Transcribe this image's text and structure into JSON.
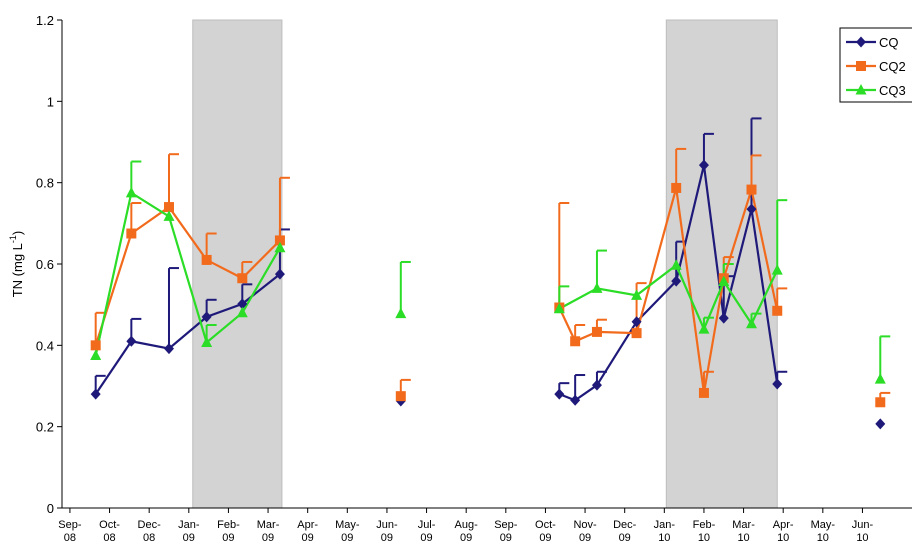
{
  "chart_data": {
    "type": "line",
    "title": "",
    "ylabel": "TN (mg L-1)",
    "ylabel_main": "TN (mg L",
    "ylabel_sup": "-1",
    "ylabel_close": ")",
    "xlabel": "",
    "ylim": [
      0,
      1.2
    ],
    "yticks": [
      "0",
      "0.2",
      "0.4",
      "0.6",
      "0.8",
      "1",
      "1.2"
    ],
    "xlim": [
      -0.2,
      21.2
    ],
    "xticks": [
      {
        "top": "Sep-",
        "bottom": "08"
      },
      {
        "top": "Oct-",
        "bottom": "08"
      },
      {
        "top": "Dec-",
        "bottom": "08"
      },
      {
        "top": "Jan-",
        "bottom": "09"
      },
      {
        "top": "Feb-",
        "bottom": "09"
      },
      {
        "top": "Mar-",
        "bottom": "09"
      },
      {
        "top": "Apr-",
        "bottom": "09"
      },
      {
        "top": "May-",
        "bottom": "09"
      },
      {
        "top": "Jun-",
        "bottom": "09"
      },
      {
        "top": "Jul-",
        "bottom": "09"
      },
      {
        "top": "Aug-",
        "bottom": "09"
      },
      {
        "top": "Sep-",
        "bottom": "09"
      },
      {
        "top": "Oct-",
        "bottom": "09"
      },
      {
        "top": "Nov-",
        "bottom": "09"
      },
      {
        "top": "Dec-",
        "bottom": "09"
      },
      {
        "top": "Jan-",
        "bottom": "10"
      },
      {
        "top": "Feb-",
        "bottom": "10"
      },
      {
        "top": "Mar-",
        "bottom": "10"
      },
      {
        "top": "Apr-",
        "bottom": "10"
      },
      {
        "top": "May-",
        "bottom": "10"
      },
      {
        "top": "Jun-",
        "bottom": "10"
      }
    ],
    "shaded_regions": [
      [
        3.1,
        5.35
      ],
      [
        15.05,
        17.85
      ]
    ],
    "legend_placement": "top-right",
    "grid": false,
    "series": [
      {
        "name": "CQ",
        "color": "#1f1a7a",
        "marker": "diamond",
        "segments": [
          [
            [
              0.65,
              0.28
            ],
            [
              1.55,
              0.41
            ],
            [
              2.5,
              0.392
            ],
            [
              3.45,
              0.47
            ],
            [
              4.35,
              0.502
            ],
            [
              5.3,
              0.575
            ]
          ],
          [
            [
              8.35,
              0.263
            ]
          ],
          [
            [
              12.35,
              0.28
            ],
            [
              12.75,
              0.265
            ],
            [
              13.3,
              0.302
            ],
            [
              14.3,
              0.458
            ],
            [
              15.3,
              0.558
            ],
            [
              16.0,
              0.843
            ],
            [
              16.5,
              0.467
            ],
            [
              17.2,
              0.735
            ],
            [
              17.85,
              0.305
            ]
          ],
          [
            [
              20.45,
              0.207
            ]
          ]
        ],
        "errors": [
          [
            0.65,
            0.28,
            0.325
          ],
          [
            1.55,
            0.41,
            0.465
          ],
          [
            2.5,
            0.392,
            0.59
          ],
          [
            3.45,
            0.47,
            0.512
          ],
          [
            4.35,
            0.502,
            0.55
          ],
          [
            5.3,
            0.575,
            0.685
          ],
          [
            12.35,
            0.28,
            0.307
          ],
          [
            12.75,
            0.265,
            0.327
          ],
          [
            13.3,
            0.302,
            0.335
          ],
          [
            15.3,
            0.558,
            0.655
          ],
          [
            16.0,
            0.843,
            0.92
          ],
          [
            16.5,
            0.467,
            0.57
          ],
          [
            17.2,
            0.735,
            0.958
          ],
          [
            17.85,
            0.305,
            0.335
          ]
        ]
      },
      {
        "name": "CQ2",
        "color": "#f26b1d",
        "marker": "square",
        "segments": [
          [
            [
              0.65,
              0.4
            ],
            [
              1.55,
              0.675
            ],
            [
              2.5,
              0.74
            ],
            [
              3.45,
              0.61
            ],
            [
              4.35,
              0.565
            ],
            [
              5.3,
              0.658
            ]
          ],
          [
            [
              8.35,
              0.275
            ]
          ],
          [
            [
              12.35,
              0.493
            ],
            [
              12.75,
              0.41
            ],
            [
              13.3,
              0.433
            ],
            [
              14.3,
              0.43
            ],
            [
              15.3,
              0.787
            ],
            [
              16.0,
              0.283
            ],
            [
              16.5,
              0.565
            ],
            [
              17.2,
              0.783
            ],
            [
              17.85,
              0.485
            ]
          ],
          [
            [
              20.45,
              0.26
            ]
          ]
        ],
        "errors": [
          [
            0.65,
            0.4,
            0.48
          ],
          [
            1.55,
            0.675,
            0.75
          ],
          [
            2.5,
            0.74,
            0.87
          ],
          [
            3.45,
            0.61,
            0.675
          ],
          [
            4.35,
            0.565,
            0.605
          ],
          [
            5.3,
            0.658,
            0.812
          ],
          [
            8.35,
            0.275,
            0.315
          ],
          [
            12.35,
            0.493,
            0.75
          ],
          [
            12.75,
            0.41,
            0.45
          ],
          [
            13.3,
            0.433,
            0.463
          ],
          [
            14.3,
            0.43,
            0.553
          ],
          [
            15.3,
            0.787,
            0.883
          ],
          [
            16.0,
            0.283,
            0.335
          ],
          [
            16.5,
            0.565,
            0.617
          ],
          [
            17.2,
            0.783,
            0.867
          ],
          [
            17.85,
            0.485,
            0.54
          ],
          [
            20.45,
            0.26,
            0.283
          ]
        ]
      },
      {
        "name": "CQ3",
        "color": "#2bdd26",
        "marker": "triangle",
        "segments": [
          [
            [
              0.65,
              0.375
            ],
            [
              1.55,
              0.775
            ],
            [
              2.5,
              0.717
            ],
            [
              3.45,
              0.407
            ],
            [
              4.35,
              0.48
            ],
            [
              5.3,
              0.64
            ]
          ],
          [
            [
              8.35,
              0.478
            ]
          ],
          [
            [
              12.35,
              0.49
            ],
            [
              13.3,
              0.54
            ],
            [
              14.3,
              0.523
            ],
            [
              15.3,
              0.597
            ],
            [
              16.0,
              0.44
            ],
            [
              16.5,
              0.557
            ],
            [
              17.2,
              0.453
            ],
            [
              17.85,
              0.585
            ]
          ],
          [
            [
              20.45,
              0.317
            ]
          ]
        ],
        "errors": [
          [
            1.55,
            0.775,
            0.852
          ],
          [
            3.45,
            0.407,
            0.45
          ],
          [
            8.35,
            0.478,
            0.605
          ],
          [
            12.35,
            0.49,
            0.545
          ],
          [
            13.3,
            0.54,
            0.633
          ],
          [
            16.0,
            0.44,
            0.468
          ],
          [
            16.5,
            0.557,
            0.6
          ],
          [
            17.2,
            0.453,
            0.478
          ],
          [
            17.85,
            0.585,
            0.757
          ],
          [
            20.45,
            0.317,
            0.422
          ]
        ]
      }
    ]
  }
}
